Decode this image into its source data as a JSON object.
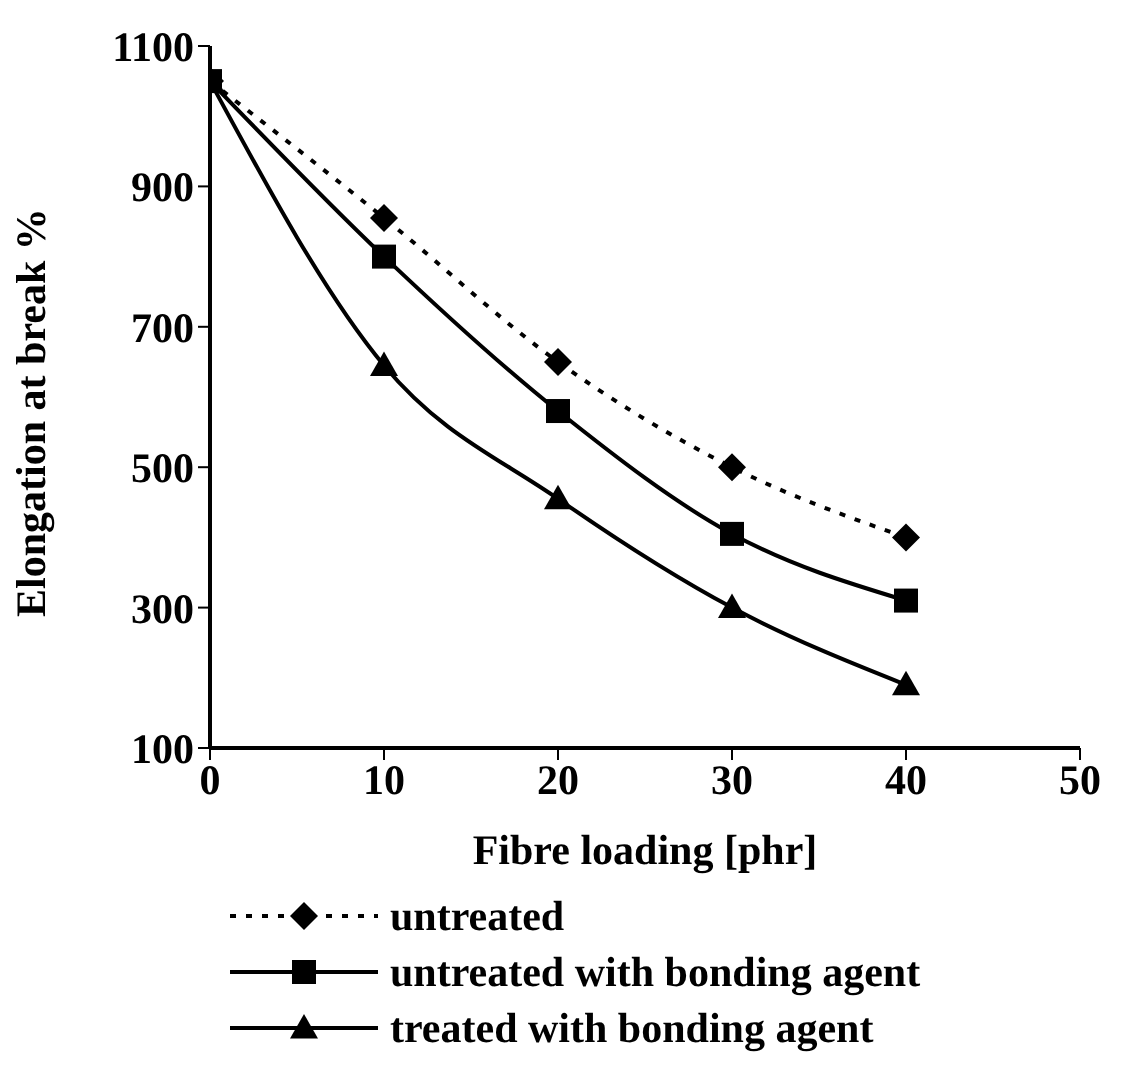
{
  "chart_data": {
    "type": "line",
    "xlabel": "Fibre loading [phr]",
    "ylabel": "Elongation at break %",
    "x": [
      0,
      10,
      20,
      30,
      40
    ],
    "xlim": [
      0,
      50
    ],
    "xticks": [
      0,
      10,
      20,
      30,
      40,
      50
    ],
    "ylim": [
      100,
      1100
    ],
    "yticks": [
      100,
      300,
      500,
      700,
      900,
      1100
    ],
    "grid": false,
    "legend": "bottom",
    "series": [
      {
        "name": "untreated",
        "color": "#000000",
        "marker": "diamond",
        "line_style": "dotted",
        "values": [
          1050,
          855,
          650,
          500,
          400
        ]
      },
      {
        "name": "untreated with bonding agent",
        "color": "#000000",
        "marker": "square",
        "line_style": "solid",
        "values": [
          1050,
          800,
          580,
          405,
          310
        ]
      },
      {
        "name": "treated with bonding agent",
        "color": "#000000",
        "marker": "triangle",
        "line_style": "solid",
        "values": [
          1050,
          645,
          455,
          300,
          190
        ]
      }
    ]
  }
}
